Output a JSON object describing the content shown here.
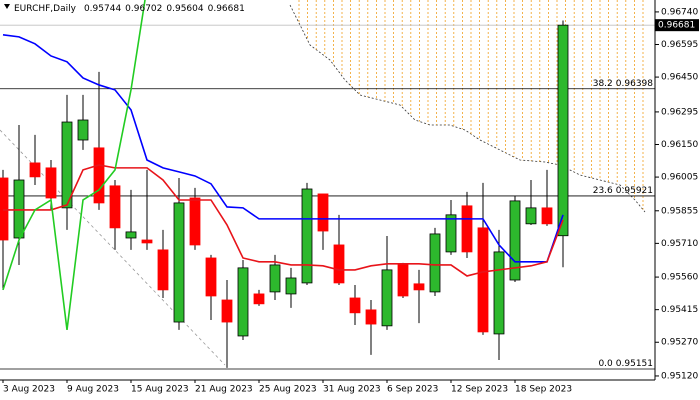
{
  "chart_data": {
    "type": "candlestick",
    "symbol": "EURCHF,Daily",
    "header_values": [
      0.95744,
      0.96702,
      0.95604,
      0.96681
    ],
    "categories": [
      "3 Aug 2023",
      null,
      null,
      null,
      "9 Aug 2023",
      null,
      null,
      null,
      "15 Aug 2023",
      null,
      null,
      null,
      "21 Aug 2023",
      null,
      null,
      null,
      "25 Aug 2023",
      null,
      null,
      null,
      "31 Aug 2023",
      null,
      null,
      null,
      "6 Sep 2023",
      null,
      null,
      null,
      "12 Sep 2023",
      null,
      null,
      null,
      "18 Sep 2023",
      null,
      null,
      null
    ],
    "open": [
      0.96001,
      0.95734,
      0.96068,
      0.96046,
      0.95868,
      0.9617,
      0.96135,
      0.95966,
      0.95734,
      0.95725,
      0.95681,
      0.9536,
      0.95912,
      0.95645,
      0.95458,
      0.95298,
      0.95485,
      0.95494,
      0.95485,
      0.95534,
      0.9593,
      0.95703,
      0.95467,
      0.95414,
      0.95343,
      0.95619,
      0.9553,
      0.95494,
      0.95672,
      0.95877,
      0.95779,
      0.95307,
      0.95547,
      0.95797,
      0.95868,
      0.95744
    ],
    "high": [
      0.96037,
      0.96237,
      0.96193,
      0.96081,
      0.96371,
      0.96371,
      0.96473,
      0.95992,
      0.95948,
      0.96037,
      0.9577,
      0.96001,
      0.95957,
      0.95659,
      0.95547,
      0.95636,
      0.95503,
      0.95659,
      0.95601,
      0.95979,
      0.9593,
      0.95837,
      0.95525,
      0.95458,
      0.95743,
      0.95623,
      0.95592,
      0.95779,
      0.95903,
      0.95939,
      0.95979,
      0.9577,
      0.95921,
      0.95992,
      0.96037,
      0.96702
    ],
    "low": [
      0.95503,
      0.95614,
      0.9597,
      0.95859,
      0.9577,
      0.96126,
      0.95859,
      0.95681,
      0.95681,
      0.95681,
      0.95467,
      0.95325,
      0.95681,
      0.95369,
      0.95156,
      0.9528,
      0.95432,
      0.95458,
      0.95423,
      0.95525,
      0.95681,
      0.95525,
      0.95347,
      0.95214,
      0.95325,
      0.95467,
      0.95355,
      0.95476,
      0.95659,
      0.95645,
      0.95303,
      0.95191,
      0.95538,
      0.95792,
      0.95788,
      0.95604
    ],
    "close": [
      0.95725,
      0.95992,
      0.96006,
      0.95912,
      0.9625,
      0.96259,
      0.9589,
      0.95779,
      0.95761,
      0.95712,
      0.95503,
      0.9589,
      0.95703,
      0.95476,
      0.9536,
      0.95601,
      0.95441,
      0.95614,
      0.95556,
      0.95952,
      0.95765,
      0.95534,
      0.95401,
      0.95351,
      0.95592,
      0.95476,
      0.95503,
      0.95752,
      0.95837,
      0.95672,
      0.95316,
      0.95672,
      0.95899,
      0.95868,
      0.95797,
      0.96681
    ],
    "up_color": "#2db82d",
    "down_color": "#ff0000",
    "lines": [
      {
        "color": "#0000ff",
        "values": [
          0.96638,
          0.96629,
          0.96598,
          0.96544,
          0.96518,
          0.96446,
          0.96415,
          0.96393,
          0.96304,
          0.96081,
          0.96046,
          0.96028,
          0.9601,
          0.95975,
          0.95872,
          0.95868,
          0.95819,
          0.95819,
          0.95819,
          0.95819,
          0.95819,
          0.95819,
          0.95819,
          0.95819,
          0.95819,
          0.95819,
          0.95819,
          0.95819,
          0.95819,
          0.95819,
          0.95819,
          0.95703,
          0.95628,
          0.95628,
          0.95628,
          0.95837
        ]
      },
      {
        "color": "#e8141a",
        "values": [
          0.95859,
          0.95859,
          0.95859,
          0.95859,
          0.95881,
          0.96037,
          0.96059,
          0.96046,
          0.96046,
          0.96046,
          0.95992,
          0.95903,
          0.95903,
          0.95903,
          0.95792,
          0.95645,
          0.95628,
          0.95628,
          0.95614,
          0.95614,
          0.9561,
          0.95592,
          0.95592,
          0.9561,
          0.95619,
          0.95619,
          0.95619,
          0.95614,
          0.95614,
          0.95565,
          0.95583,
          0.95592,
          0.95601,
          0.9561,
          0.95628,
          0.95814
        ]
      },
      {
        "color": "#22cc22",
        "values": [
          0.95503,
          0.95725,
          0.95859,
          0.95903,
          0.95325,
          0.95903,
          0.95948,
          0.96037,
          0.96393,
          0.9685,
          null,
          null,
          null,
          null,
          null,
          null,
          null,
          null,
          null,
          null,
          null,
          null,
          null,
          null,
          null,
          null,
          null,
          null,
          null,
          null,
          null,
          null,
          null,
          null,
          null,
          null
        ]
      }
    ],
    "fib_levels": [
      {
        "level": "38.2",
        "value": 0.96398
      },
      {
        "level": "23.6",
        "value": 0.95921
      },
      {
        "level": "0.0",
        "value": 0.95151
      }
    ],
    "current_price": 0.96681,
    "ylim": [
      0.95102,
      0.96793
    ],
    "yticks": [
      {
        "value": 0.9674,
        "label": "0.96740"
      },
      0.96595,
      {
        "value": 0.9645,
        "label": "0.96450"
      },
      0.96295,
      {
        "value": 0.9615,
        "label": "0.96150"
      },
      0.96005,
      0.95855,
      {
        "value": 0.9571,
        "label": "0.95710"
      },
      {
        "value": 0.9556,
        "label": "0.95560"
      },
      0.95415,
      {
        "value": 0.9527,
        "label": "0.95270"
      },
      {
        "value": 0.9512,
        "label": "0.95120"
      }
    ]
  }
}
